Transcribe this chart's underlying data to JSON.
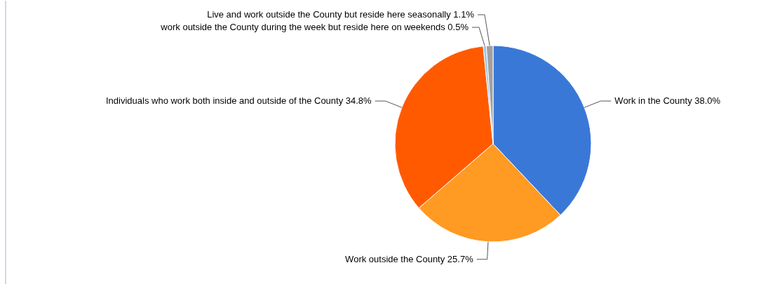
{
  "chart_data": {
    "type": "pie",
    "categories": [
      "Work in the County",
      "Work outside the County",
      "Individuals who work both inside and outside of the County",
      "work outside the County during the week but reside here on weekends",
      "Live and work outside the County but reside here seasonally"
    ],
    "values": [
      38.0,
      25.7,
      34.8,
      0.5,
      1.1
    ],
    "colors": [
      "#3a78d8",
      "#ff9a22",
      "#ff5a00",
      "#9fc5e8",
      "#a0a0a0"
    ],
    "value_labels": [
      "38.0%",
      "25.7%",
      "34.8%",
      "0.5%",
      "1.1%"
    ],
    "legend": false
  }
}
